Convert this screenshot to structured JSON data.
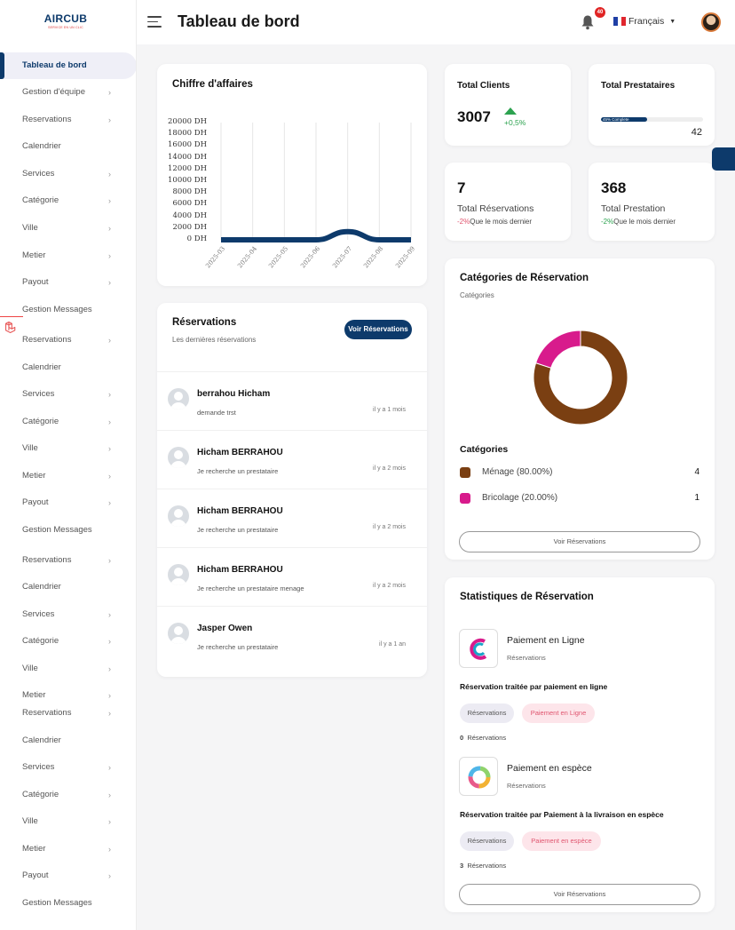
{
  "logo": {
    "name": "AIRCUB",
    "tagline": "SERVICE EN UN CLIC"
  },
  "sidebar": {
    "active": "Tableau de bord",
    "items": [
      {
        "label": "Tableau de bord",
        "chevron": false
      },
      {
        "label": "Gestion d'équipe",
        "chevron": true
      },
      {
        "label": "Reservations",
        "chevron": true
      },
      {
        "label": "Calendrier",
        "chevron": false
      },
      {
        "label": "Services",
        "chevron": true
      },
      {
        "label": "Catégorie",
        "chevron": true
      },
      {
        "label": "Ville",
        "chevron": true
      },
      {
        "label": "Metier",
        "chevron": true
      },
      {
        "label": "Payout",
        "chevron": true
      },
      {
        "label": "Gestion Messages",
        "chevron": false
      },
      {
        "label": "Reservations",
        "chevron": true
      },
      {
        "label": "Calendrier",
        "chevron": false
      },
      {
        "label": "Services",
        "chevron": true
      },
      {
        "label": "Catégorie",
        "chevron": true
      },
      {
        "label": "Ville",
        "chevron": true
      },
      {
        "label": "Metier",
        "chevron": true
      },
      {
        "label": "Payout",
        "chevron": true
      },
      {
        "label": "Gestion Messages",
        "chevron": false
      },
      {
        "label": "Reservations",
        "chevron": true
      },
      {
        "label": "Calendrier",
        "chevron": false
      },
      {
        "label": "Services",
        "chevron": true
      },
      {
        "label": "Catégorie",
        "chevron": true
      },
      {
        "label": "Ville",
        "chevron": true
      },
      {
        "label": "Metier",
        "chevron": true
      },
      {
        "label": "Reservations",
        "chevron": true
      },
      {
        "label": "Calendrier",
        "chevron": false
      },
      {
        "label": "Services",
        "chevron": true
      },
      {
        "label": "Catégorie",
        "chevron": true
      },
      {
        "label": "Ville",
        "chevron": true
      },
      {
        "label": "Metier",
        "chevron": true
      },
      {
        "label": "Payout",
        "chevron": true
      },
      {
        "label": "Gestion Messages",
        "chevron": false
      }
    ]
  },
  "header": {
    "title": "Tableau de bord",
    "notif_count": "40",
    "language": "Français"
  },
  "revenue": {
    "title": "Chiffre d'affaires",
    "chart_data": {
      "type": "area",
      "y_ticks": [
        "20000 DH",
        "18000 DH",
        "16000 DH",
        "14000 DH",
        "12000 DH",
        "10000 DH",
        "8000 DH",
        "6000 DH",
        "4000 DH",
        "2000 DH",
        "0 DH"
      ],
      "ylim": [
        0,
        20000
      ],
      "x": [
        "2025-03",
        "2025-04",
        "2025-05",
        "2025-06",
        "2025-07",
        "2025-08",
        "2025-09"
      ],
      "values": [
        0,
        0,
        0,
        0,
        1400,
        0,
        0
      ],
      "color": "#0d3a6b"
    }
  },
  "reservations": {
    "title": "Réservations",
    "subtitle": "Les dernières réservations",
    "button": "Voir Réservations",
    "rows": [
      {
        "name": "berrahou Hicham",
        "message": "demande trst",
        "time": "il y a 1 mois"
      },
      {
        "name": "Hicham BERRAHOU",
        "message": "Je recherche un prestataire",
        "time": "il y a 2 mois"
      },
      {
        "name": "Hicham BERRAHOU",
        "message": "Je recherche un prestataire",
        "time": "il y a 2 mois"
      },
      {
        "name": "Hicham BERRAHOU",
        "message": "Je recherche un prestataire menage",
        "time": "il y a 2 mois"
      },
      {
        "name": "Jasper Owen",
        "message": "Je recherche un prestataire",
        "time": "il y a 1 an"
      }
    ]
  },
  "total_clients": {
    "title": "Total Clients",
    "value": "3007",
    "delta": "+0,5%",
    "delta_color": "#2ca24f"
  },
  "total_prestataires": {
    "title": "Total Prestataires",
    "progress_label": "45% Complete",
    "progress": 0.45,
    "value": "42"
  },
  "total_reservations": {
    "value": "7",
    "label": "Total Réservations",
    "delta": "-2%",
    "suffix": "Que le mois dernier",
    "delta_color": "#e0556f"
  },
  "total_prestation": {
    "value": "368",
    "label": "Total Prestation",
    "delta": "-2%",
    "suffix": "Que le mois dernier",
    "delta_color": "#2ca24f"
  },
  "categories": {
    "title": "Catégories de Réservation",
    "subtitle": "Catégories",
    "legend_title": "Catégories",
    "button": "Voir Réservations",
    "chart_data": {
      "type": "pie",
      "slices": [
        {
          "label": "Ménage (80.00%)",
          "value": 80,
          "count": "4",
          "color": "#7a3f12"
        },
        {
          "label": "Bricolage (20.00%)",
          "value": 20,
          "count": "1",
          "color": "#d81b8c"
        }
      ]
    }
  },
  "stats": {
    "title": "Statistiques de Réservation",
    "online": {
      "name": "Paiement en Ligne",
      "sub": "Réservations",
      "heading": "Réservation traitée par paiement en ligne",
      "pill1": "Réservations",
      "pill2": "Paiement en Ligne",
      "count": "0",
      "count_label": "Réservations"
    },
    "cash": {
      "name": "Paiement en espèce",
      "sub": "Réservations",
      "heading": "Réservation traitée par Paiement à la livraison en espèce",
      "pill1": "Réservations",
      "pill2": "Paiement en espèce",
      "count": "3",
      "count_label": "Réservations"
    },
    "button": "Voir Réservations"
  }
}
